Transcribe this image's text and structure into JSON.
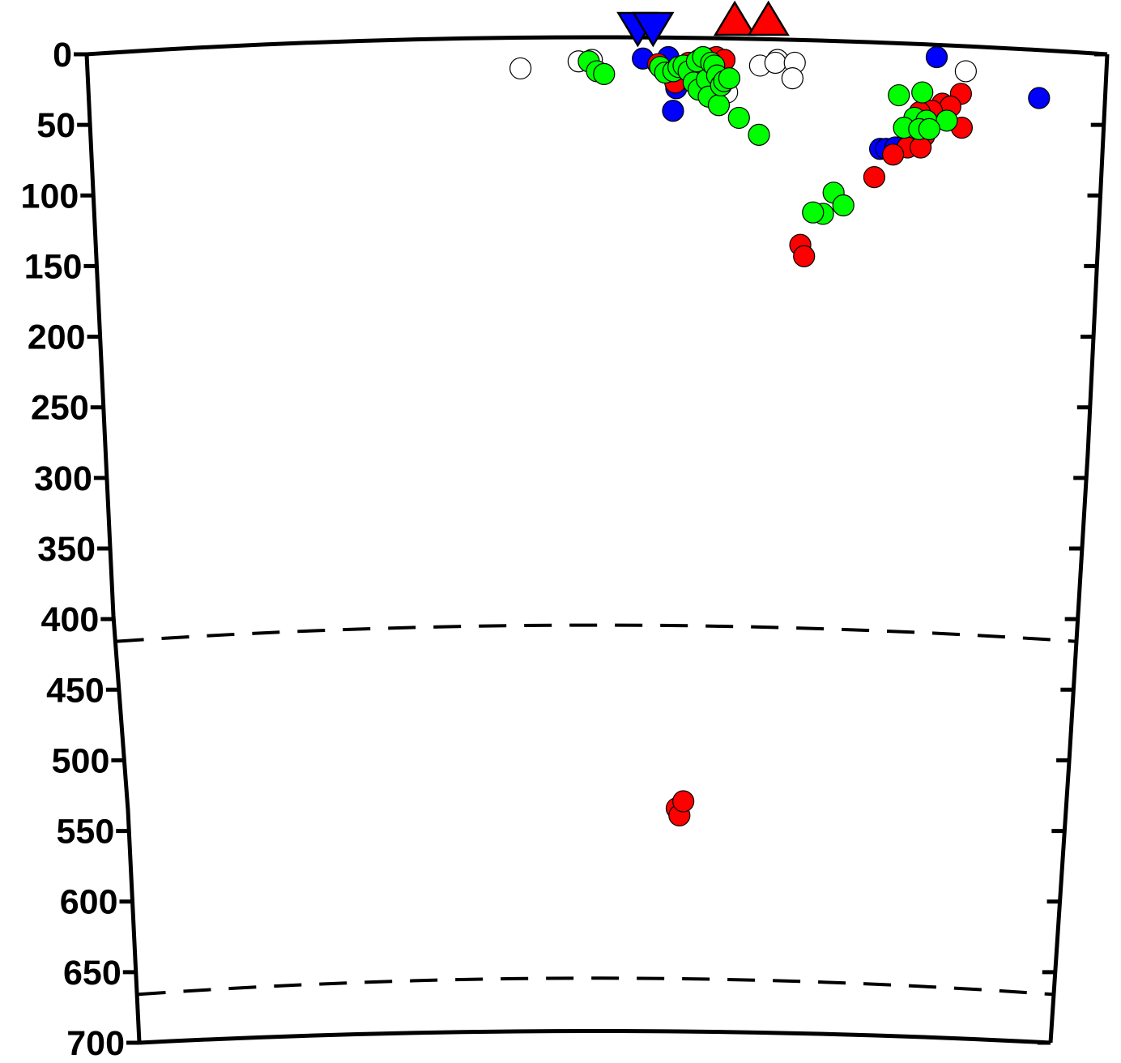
{
  "chart_data": {
    "type": "scatter",
    "title": "",
    "xlabel": "",
    "ylabel": "",
    "ylim": [
      0,
      700
    ],
    "y_inverted": true,
    "y_ticks": [
      "0",
      "50",
      "100",
      "150",
      "200",
      "250",
      "300",
      "350",
      "400",
      "450",
      "500",
      "550",
      "600",
      "650",
      "700"
    ],
    "x_ticks": [],
    "legend": "none",
    "grid": false,
    "reference_lines": [
      {
        "depth": 410,
        "style": "dashed"
      },
      {
        "depth": 660,
        "style": "dashed"
      }
    ],
    "surface_markers": [
      {
        "symbol": "triangle-down",
        "color": "#0000ff",
        "x": 0.54
      },
      {
        "symbol": "triangle-down",
        "color": "#0000ff",
        "x": 0.555
      },
      {
        "symbol": "triangle-up",
        "color": "#ff0000",
        "x": 0.635
      },
      {
        "symbol": "triangle-up",
        "color": "#ff0000",
        "x": 0.668
      }
    ],
    "series": [
      {
        "color": "#ffffff",
        "points": [
          [
            0.425,
            10
          ],
          [
            0.482,
            5
          ],
          [
            0.495,
            4
          ],
          [
            0.573,
            7
          ],
          [
            0.66,
            8
          ],
          [
            0.677,
            4
          ],
          [
            0.675,
            6
          ],
          [
            0.694,
            6
          ],
          [
            0.692,
            17
          ],
          [
            0.625,
            4
          ],
          [
            0.628,
            27
          ],
          [
            0.862,
            12
          ]
        ]
      },
      {
        "color": "#0000ff",
        "points": [
          [
            0.545,
            3
          ],
          [
            0.57,
            2
          ],
          [
            0.578,
            24
          ],
          [
            0.575,
            40
          ],
          [
            0.833,
            2
          ],
          [
            0.935,
            31
          ],
          [
            0.78,
            67
          ],
          [
            0.786,
            67
          ],
          [
            0.795,
            66
          ]
        ]
      },
      {
        "color": "#ff0000",
        "points": [
          [
            0.56,
            7
          ],
          [
            0.565,
            11
          ],
          [
            0.572,
            14
          ],
          [
            0.577,
            20
          ],
          [
            0.59,
            6
          ],
          [
            0.6,
            4
          ],
          [
            0.607,
            3
          ],
          [
            0.612,
            3
          ],
          [
            0.617,
            2
          ],
          [
            0.622,
            14
          ],
          [
            0.625,
            4
          ],
          [
            0.858,
            28
          ],
          [
            0.84,
            35
          ],
          [
            0.848,
            37
          ],
          [
            0.83,
            40
          ],
          [
            0.818,
            41
          ],
          [
            0.86,
            52
          ],
          [
            0.823,
            58
          ],
          [
            0.807,
            66
          ],
          [
            0.82,
            66
          ],
          [
            0.793,
            71
          ],
          [
            0.775,
            87
          ],
          [
            0.703,
            135
          ],
          [
            0.707,
            143
          ],
          [
            0.585,
            534
          ],
          [
            0.588,
            539
          ],
          [
            0.592,
            529
          ]
        ]
      },
      {
        "color": "#00ff00",
        "points": [
          [
            0.492,
            5
          ],
          [
            0.5,
            12
          ],
          [
            0.507,
            14
          ],
          [
            0.562,
            9
          ],
          [
            0.567,
            13
          ],
          [
            0.575,
            12
          ],
          [
            0.58,
            9
          ],
          [
            0.585,
            8
          ],
          [
            0.59,
            12
          ],
          [
            0.595,
            20
          ],
          [
            0.598,
            5
          ],
          [
            0.6,
            25
          ],
          [
            0.604,
            2
          ],
          [
            0.608,
            18
          ],
          [
            0.61,
            30
          ],
          [
            0.612,
            6
          ],
          [
            0.615,
            8
          ],
          [
            0.618,
            15
          ],
          [
            0.62,
            36
          ],
          [
            0.622,
            22
          ],
          [
            0.625,
            19
          ],
          [
            0.63,
            17
          ],
          [
            0.64,
            45
          ],
          [
            0.66,
            57
          ],
          [
            0.797,
            29
          ],
          [
            0.82,
            27
          ],
          [
            0.813,
            45
          ],
          [
            0.803,
            52
          ],
          [
            0.825,
            47
          ],
          [
            0.845,
            47
          ],
          [
            0.818,
            53
          ],
          [
            0.828,
            53
          ],
          [
            0.735,
            98
          ],
          [
            0.745,
            107
          ],
          [
            0.725,
            113
          ],
          [
            0.715,
            112
          ]
        ]
      }
    ]
  }
}
